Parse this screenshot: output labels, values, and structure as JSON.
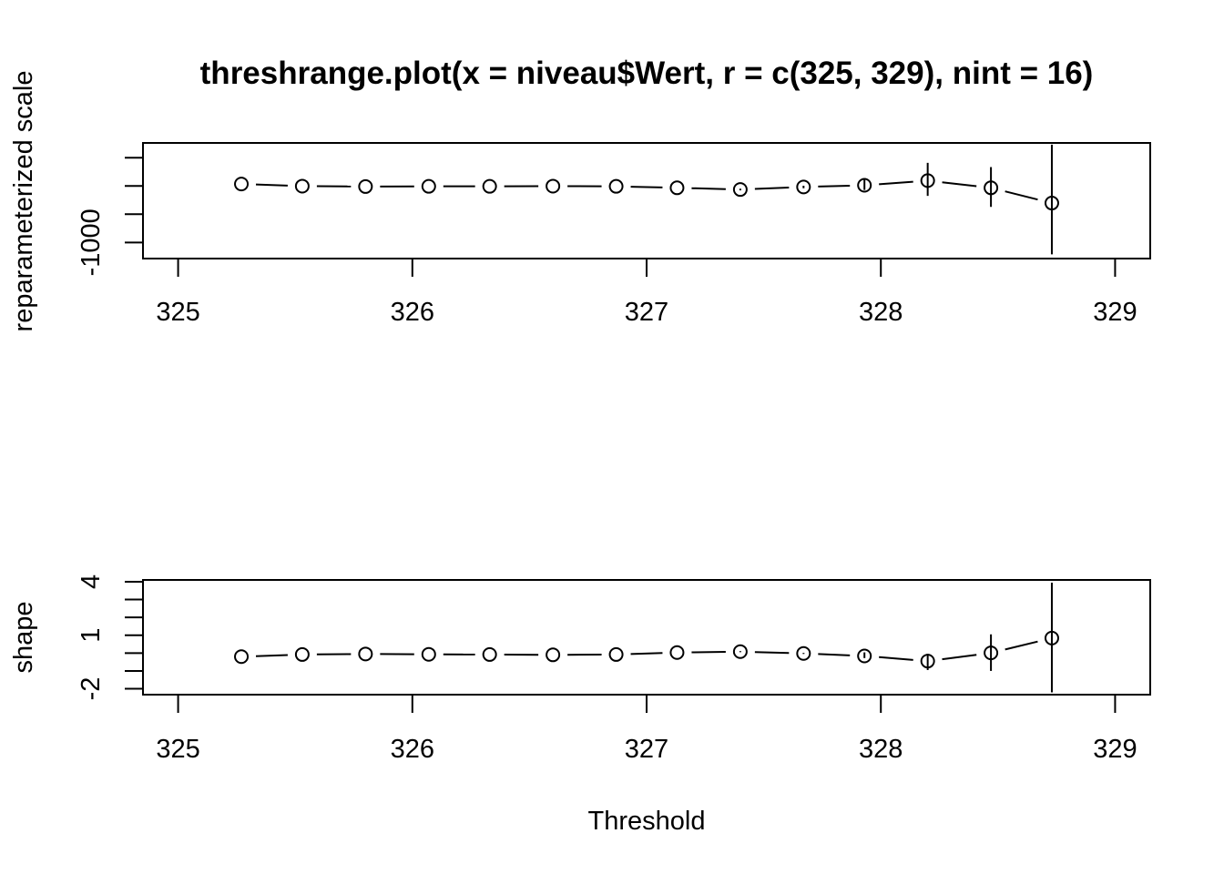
{
  "title": "threshrange.plot(x = niveau$Wert, r = c(325, 329), nint = 16)",
  "chart_data": [
    {
      "type": "scatter",
      "id": "scale",
      "ylabel": "reparameterized scale",
      "xlabel": "",
      "xlim": [
        324.85,
        329.15
      ],
      "ylim": [
        -1380,
        1350
      ],
      "x_ticks": [
        325,
        326,
        327,
        328,
        329
      ],
      "x_tick_labels": [
        "325",
        "326",
        "327",
        "328",
        "329"
      ],
      "y_ticks": [
        -1000,
        -333.33,
        333.33,
        1000
      ],
      "y_tick_labels": [
        "-1000",
        "",
        "",
        ""
      ],
      "x": [
        325.27,
        325.53,
        325.8,
        326.07,
        326.33,
        326.6,
        326.87,
        327.13,
        327.4,
        327.67,
        327.93,
        328.2,
        328.47,
        328.73
      ],
      "y": [
        380,
        330,
        320,
        325,
        325,
        330,
        325,
        290,
        250,
        310,
        350,
        460,
        290,
        -70
      ],
      "lower": [
        380,
        330,
        320,
        325,
        325,
        330,
        325,
        290,
        230,
        280,
        240,
        100,
        -160,
        -1280
      ],
      "upper": [
        380,
        330,
        320,
        325,
        325,
        330,
        325,
        290,
        270,
        340,
        490,
        880,
        780,
        1310
      ]
    },
    {
      "type": "scatter",
      "id": "shape",
      "ylabel": "shape",
      "xlabel": "Threshold",
      "xlim": [
        324.85,
        329.15
      ],
      "ylim": [
        -2.33,
        4.1
      ],
      "x_ticks": [
        325,
        326,
        327,
        328,
        329
      ],
      "x_tick_labels": [
        "325",
        "326",
        "327",
        "328",
        "329"
      ],
      "y_ticks": [
        -2,
        -1,
        0,
        1,
        2,
        3,
        4
      ],
      "y_tick_labels": [
        "-2",
        "",
        "",
        "1",
        "",
        "",
        "4"
      ],
      "x": [
        325.27,
        325.53,
        325.8,
        326.07,
        326.33,
        326.6,
        326.87,
        327.13,
        327.4,
        327.67,
        327.93,
        328.2,
        328.47,
        328.73
      ],
      "y": [
        -0.2,
        -0.08,
        -0.05,
        -0.07,
        -0.08,
        -0.1,
        -0.08,
        0.03,
        0.08,
        -0.02,
        -0.16,
        -0.45,
        0.01,
        0.84
      ],
      "lower": [
        -0.2,
        -0.08,
        -0.05,
        -0.07,
        -0.08,
        -0.1,
        -0.08,
        0.03,
        0.05,
        -0.05,
        -0.28,
        -0.95,
        -1.0,
        -2.2
      ],
      "upper": [
        -0.2,
        -0.08,
        -0.05,
        -0.07,
        -0.08,
        -0.1,
        -0.08,
        0.03,
        0.11,
        0.01,
        0.04,
        -0.05,
        1.05,
        3.95
      ]
    }
  ]
}
